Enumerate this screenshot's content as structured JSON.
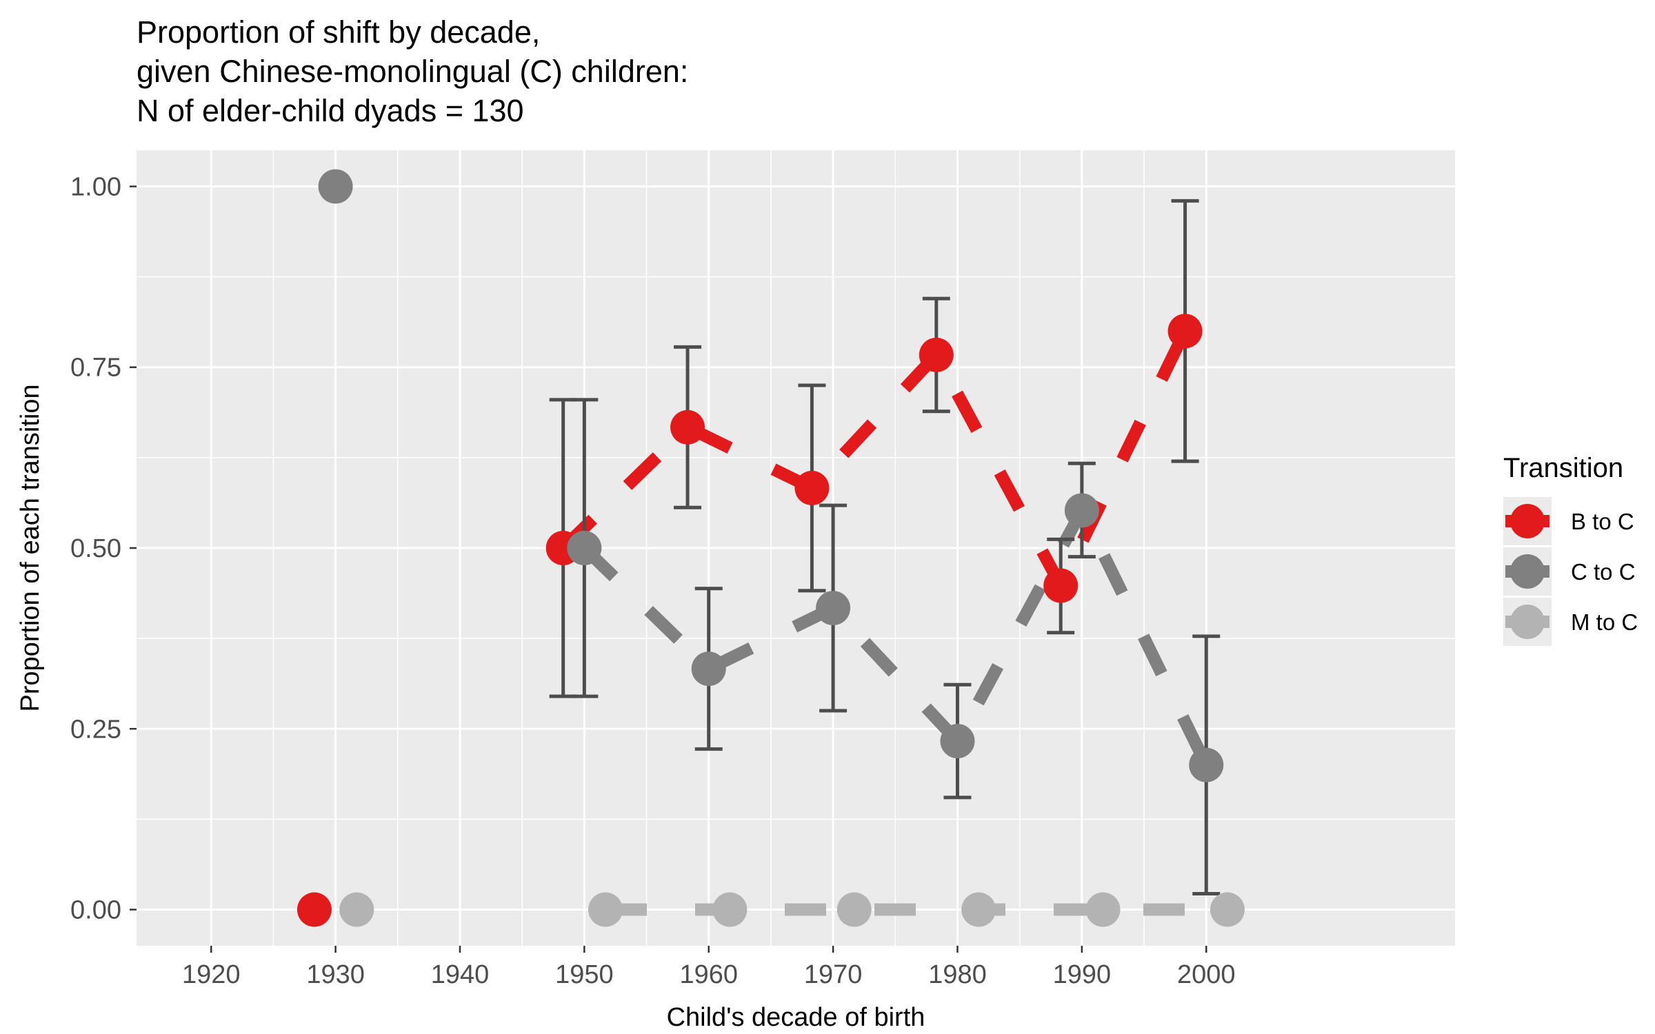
{
  "chart_data": {
    "type": "line",
    "title": [
      "Proportion of shift by decade,",
      "given Chinese-monolingual (C) children:",
      "N of elder-child dyads = 130"
    ],
    "xlabel": "Child's decade of birth",
    "ylabel": "Proportion of each transition",
    "xlim": [
      1914,
      2020
    ],
    "ylim": [
      -0.05,
      1.05
    ],
    "x_ticks": [
      1920,
      1930,
      1940,
      1950,
      1960,
      1970,
      1980,
      1990,
      2000
    ],
    "y_ticks": [
      0.0,
      0.25,
      0.5,
      0.75,
      1.0
    ],
    "y_tick_labels": [
      "0.00",
      "0.25",
      "0.50",
      "0.75",
      "1.00"
    ],
    "grid": true,
    "legend": {
      "title": "Transition",
      "position": "right"
    },
    "series": [
      {
        "name": "B to C",
        "color": "#e31a1c",
        "x": [
          1928.3,
          1948.3,
          1958.3,
          1968.3,
          1978.3,
          1988.3,
          1998.3
        ],
        "y": [
          0.0,
          0.5,
          0.667,
          0.583,
          0.767,
          0.448,
          0.8
        ],
        "line_from_index": 1,
        "errors": [
          null,
          [
            0.295,
            0.705
          ],
          [
            0.556,
            0.778
          ],
          [
            0.441,
            0.725
          ],
          [
            0.689,
            0.845
          ],
          [
            0.383,
            0.512
          ],
          [
            0.62,
            0.98
          ]
        ]
      },
      {
        "name": "C to C",
        "color": "#808080",
        "x": [
          1930,
          1950,
          1960,
          1970,
          1980,
          1990,
          2000
        ],
        "y": [
          1.0,
          0.5,
          0.333,
          0.417,
          0.233,
          0.552,
          0.2
        ],
        "line_from_index": 1,
        "errors": [
          null,
          [
            0.295,
            0.705
          ],
          [
            0.222,
            0.444
          ],
          [
            0.275,
            0.559
          ],
          [
            0.155,
            0.311
          ],
          [
            0.488,
            0.617
          ],
          [
            0.022,
            0.378
          ]
        ]
      },
      {
        "name": "M to C",
        "color": "#b3b3b3",
        "x": [
          1931.7,
          1951.7,
          1961.7,
          1971.7,
          1981.7,
          1991.7,
          2001.7
        ],
        "y": [
          0.0,
          0.0,
          0.0,
          0.0,
          0.0,
          0.0,
          0.0
        ],
        "line_from_index": 1,
        "errors": [
          null,
          null,
          null,
          null,
          null,
          null,
          null
        ]
      }
    ]
  }
}
